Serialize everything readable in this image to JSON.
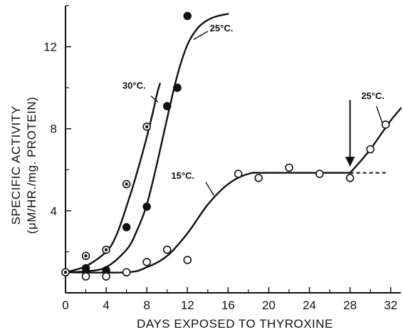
{
  "chart_data": {
    "type": "scatter",
    "title": "",
    "xlabel": "DAYS EXPOSED TO THYROXINE",
    "ylabel_line1": "SPECIFIC ACTIVITY",
    "ylabel_line2": "(μM/HR./mg. PROTEIN)",
    "xlim": [
      0,
      33
    ],
    "ylim": [
      0,
      14
    ],
    "x_ticks": [
      "0",
      "4",
      "8",
      "12",
      "16",
      "20",
      "24",
      "28",
      "32"
    ],
    "y_ticks": [
      "4",
      "8",
      "12"
    ],
    "series": [
      {
        "name": "30°C.",
        "marker": "dotted-circle",
        "points": [
          [
            0,
            1.0
          ],
          [
            2,
            1.8
          ],
          [
            4,
            2.1
          ],
          [
            6,
            5.3
          ],
          [
            8,
            8.1
          ],
          [
            11,
            10.0
          ]
        ],
        "curve": [
          [
            0,
            1.0
          ],
          [
            2,
            1.3
          ],
          [
            4,
            2.0
          ],
          [
            5,
            2.8
          ],
          [
            6,
            4.2
          ],
          [
            7,
            5.8
          ],
          [
            8,
            7.6
          ],
          [
            8.6,
            8.8
          ],
          [
            9,
            9.7
          ],
          [
            9.3,
            10.2
          ]
        ]
      },
      {
        "name": "25°C.",
        "marker": "filled-circle",
        "points": [
          [
            2,
            1.2
          ],
          [
            4,
            1.1
          ],
          [
            6,
            3.2
          ],
          [
            8,
            4.2
          ],
          [
            10,
            9.1
          ],
          [
            11,
            10.0
          ],
          [
            12,
            13.5
          ]
        ],
        "curve": [
          [
            0,
            1.0
          ],
          [
            2,
            1.05
          ],
          [
            4,
            1.25
          ],
          [
            6,
            2.1
          ],
          [
            7,
            3.0
          ],
          [
            8,
            4.3
          ],
          [
            9,
            6.3
          ],
          [
            10,
            8.5
          ],
          [
            11,
            10.6
          ],
          [
            12,
            12.1
          ],
          [
            13,
            12.9
          ],
          [
            14,
            13.3
          ],
          [
            15,
            13.5
          ],
          [
            16,
            13.6
          ]
        ]
      },
      {
        "name": "15°C.",
        "marker": "open-circle",
        "points": [
          [
            2,
            0.8
          ],
          [
            4,
            0.8
          ],
          [
            6,
            1.0
          ],
          [
            8,
            1.5
          ],
          [
            10,
            2.1
          ],
          [
            12,
            1.6
          ],
          [
            17,
            5.8
          ],
          [
            19,
            5.6
          ],
          [
            22,
            6.1
          ],
          [
            25,
            5.8
          ],
          [
            28,
            5.6
          ]
        ],
        "curve": [
          [
            0,
            1.0
          ],
          [
            6,
            1.0
          ],
          [
            8,
            1.25
          ],
          [
            10,
            1.8
          ],
          [
            12,
            2.9
          ],
          [
            14,
            4.3
          ],
          [
            16,
            5.3
          ],
          [
            18,
            5.8
          ],
          [
            20,
            5.85
          ],
          [
            28,
            5.85
          ]
        ]
      },
      {
        "name": "25°C.",
        "marker": "open-circle",
        "points": [
          [
            30,
            7.0
          ],
          [
            31.5,
            8.2
          ]
        ],
        "curve": [
          [
            28,
            5.85
          ],
          [
            29,
            6.4
          ],
          [
            30,
            7.0
          ],
          [
            31,
            7.7
          ],
          [
            32,
            8.4
          ],
          [
            33,
            9.0
          ]
        ]
      }
    ],
    "dashed_plateau": [
      [
        28,
        5.85
      ],
      [
        31.5,
        5.85
      ]
    ],
    "arrow_marker_x": 28,
    "annotations": [
      {
        "text": "30°C.",
        "series_index": 0
      },
      {
        "text": "25°C.",
        "series_index": 1
      },
      {
        "text": "15°C.",
        "series_index": 2
      },
      {
        "text": "25°C.",
        "series_index": 3
      }
    ]
  }
}
